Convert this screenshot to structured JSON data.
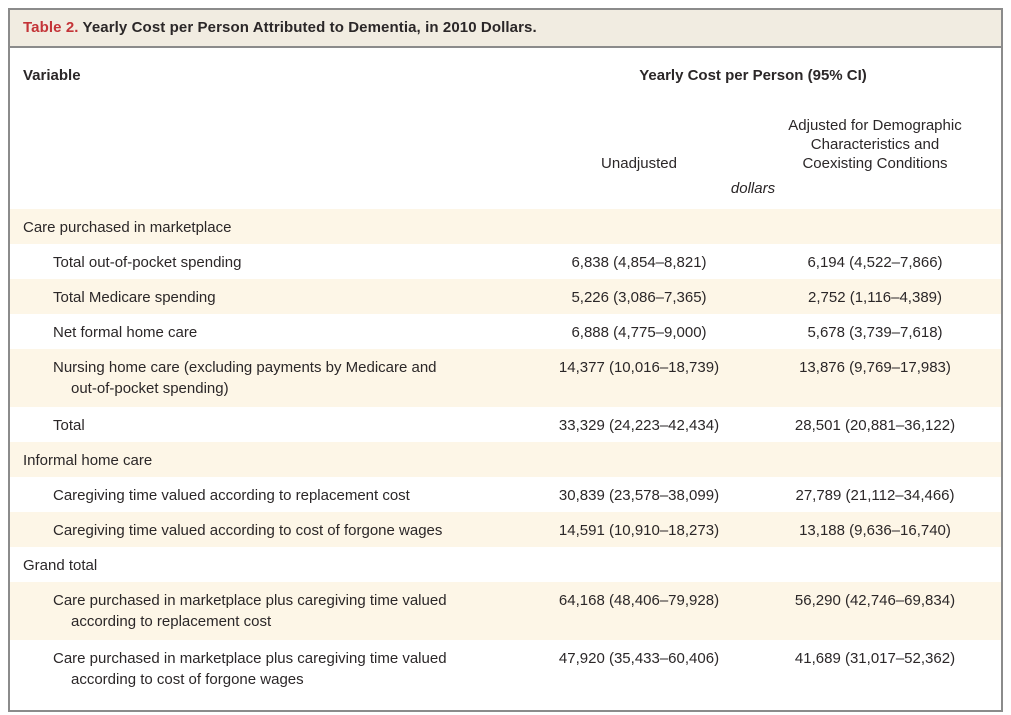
{
  "title": {
    "table_label": "Table 2.",
    "text": " Yearly Cost per Person Attributed to Dementia, in 2010 Dollars."
  },
  "header": {
    "variable": "Variable",
    "group": "Yearly Cost per Person (95% CI)",
    "col1": "Unadjusted",
    "col2": "Adjusted for Demographic\nCharacteristics and\nCoexisting Conditions",
    "unit": "dollars"
  },
  "rows": [
    {
      "type": "section",
      "label": "Care purchased in marketplace"
    },
    {
      "type": "item",
      "label": "Total out-of-pocket spending",
      "unadjusted": "6,838 (4,854–8,821)",
      "adjusted": "6,194 (4,522–7,866)"
    },
    {
      "type": "item",
      "label": "Total Medicare spending",
      "unadjusted": "5,226 (3,086–7,365)",
      "adjusted": "2,752 (1,116–4,389)"
    },
    {
      "type": "item",
      "label": "Net formal home care",
      "unadjusted": "6,888 (4,775–9,000)",
      "adjusted": "5,678 (3,739–7,618)"
    },
    {
      "type": "item",
      "label": "Nursing home care (excluding payments by Medicare and\nout-of-pocket spending)",
      "unadjusted": "14,377 (10,016–18,739)",
      "adjusted": "13,876 (9,769–17,983)"
    },
    {
      "type": "item",
      "label": "Total",
      "unadjusted": "33,329 (24,223–42,434)",
      "adjusted": "28,501 (20,881–36,122)"
    },
    {
      "type": "section",
      "label": "Informal home care"
    },
    {
      "type": "item",
      "label": "Caregiving time valued according to replacement cost",
      "unadjusted": "30,839 (23,578–38,099)",
      "adjusted": "27,789 (21,112–34,466)"
    },
    {
      "type": "item",
      "label": "Caregiving time valued according to cost of forgone wages",
      "unadjusted": "14,591 (10,910–18,273)",
      "adjusted": "13,188 (9,636–16,740)"
    },
    {
      "type": "section",
      "label": "Grand total"
    },
    {
      "type": "item",
      "label": "Care purchased in marketplace plus caregiving time valued\naccording to replacement cost",
      "unadjusted": "64,168 (48,406–79,928)",
      "adjusted": "56,290 (42,746–69,834)"
    },
    {
      "type": "item",
      "label": "Care purchased in marketplace plus caregiving time valued\naccording to cost of forgone wages",
      "unadjusted": "47,920 (35,433–60,406)",
      "adjusted": "41,689 (31,017–52,362)"
    }
  ],
  "colors": {
    "accent_red": "#c43438",
    "title_bar_bg": "#f1ece1",
    "stripe_bg": "#fdf6e7",
    "border_gray": "#8b8b8b",
    "text": "#2b2728"
  }
}
